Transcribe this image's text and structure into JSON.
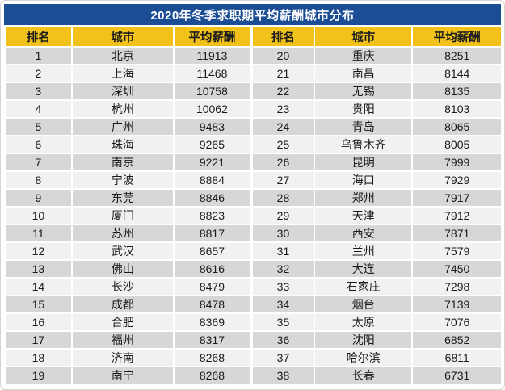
{
  "title": "2020年冬季求职期平均薪酬城市分布",
  "colors": {
    "title_bg": "#1b4d95",
    "title_text": "#ffffff",
    "header_bg": "#f2c21a",
    "header_text": "#1a1a1a",
    "row_odd": "#d7d7d7",
    "row_even": "#f1f1f1",
    "cell_text": "#1a1a1a",
    "gap": "#ffffff",
    "frame": "#d4d4d4"
  },
  "chart_data": {
    "type": "table",
    "title": "2020年冬季求职期平均薪酬城市分布",
    "columns": [
      "排名",
      "城市",
      "平均薪酬",
      "排名",
      "城市",
      "平均薪酬"
    ],
    "rows": [
      [
        1,
        "北京",
        11913,
        20,
        "重庆",
        8251
      ],
      [
        2,
        "上海",
        11468,
        21,
        "南昌",
        8144
      ],
      [
        3,
        "深圳",
        10758,
        22,
        "无锡",
        8135
      ],
      [
        4,
        "杭州",
        10062,
        23,
        "贵阳",
        8103
      ],
      [
        5,
        "广州",
        9483,
        24,
        "青岛",
        8065
      ],
      [
        6,
        "珠海",
        9265,
        25,
        "乌鲁木齐",
        8005
      ],
      [
        7,
        "南京",
        9221,
        26,
        "昆明",
        7999
      ],
      [
        8,
        "宁波",
        8884,
        27,
        "海口",
        7929
      ],
      [
        9,
        "东莞",
        8846,
        28,
        "郑州",
        7917
      ],
      [
        10,
        "厦门",
        8823,
        29,
        "天津",
        7912
      ],
      [
        11,
        "苏州",
        8817,
        30,
        "西安",
        7871
      ],
      [
        12,
        "武汉",
        8657,
        31,
        "兰州",
        7579
      ],
      [
        13,
        "佛山",
        8616,
        32,
        "大连",
        7450
      ],
      [
        14,
        "长沙",
        8479,
        33,
        "石家庄",
        7298
      ],
      [
        15,
        "成都",
        8478,
        34,
        "烟台",
        7139
      ],
      [
        16,
        "合肥",
        8369,
        35,
        "太原",
        7076
      ],
      [
        17,
        "福州",
        8317,
        36,
        "沈阳",
        6852
      ],
      [
        18,
        "济南",
        8268,
        37,
        "哈尔滨",
        6811
      ],
      [
        19,
        "南宁",
        8268,
        38,
        "长春",
        6731
      ]
    ],
    "layout": {
      "structure": "two side-by-side rank/city/salary column groups in one table",
      "row_striping": "odd rows gray, even rows light gray",
      "grid": "white 2px separators between all cells"
    }
  }
}
